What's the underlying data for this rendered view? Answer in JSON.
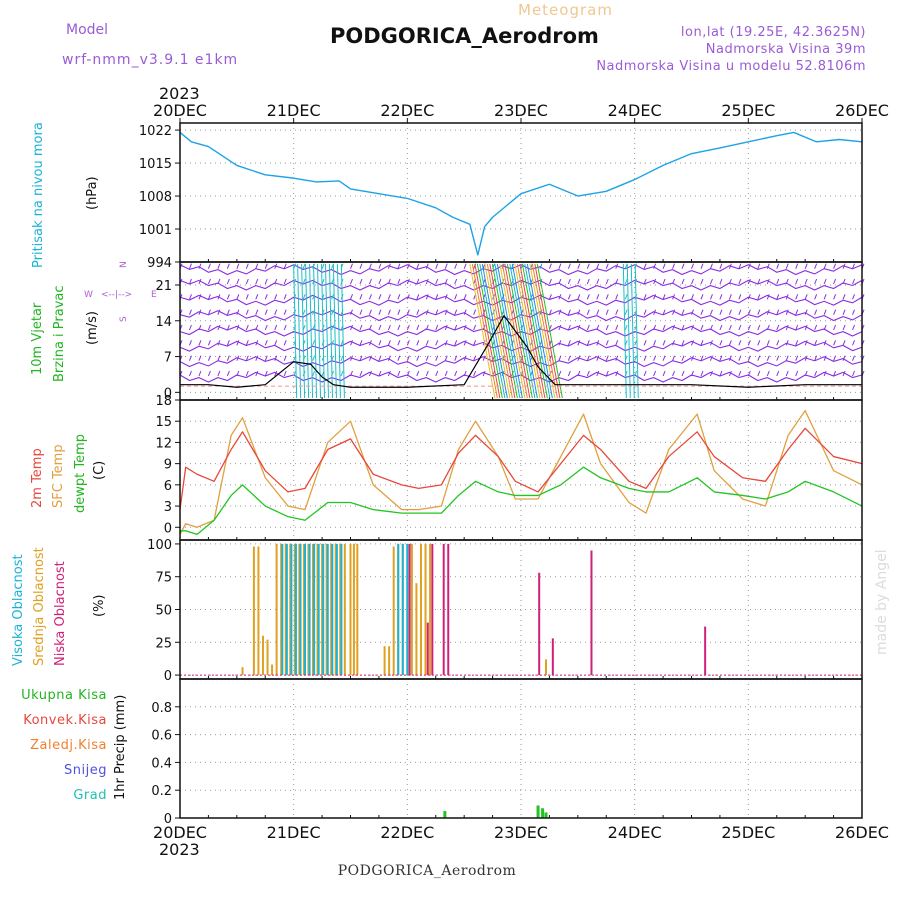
{
  "header": {
    "model_label": "Model",
    "model_value": "wrf-nmm_v3.9.1  e1km",
    "meteogram_label": "Meteogram",
    "title": "PODGORICA_Aerodrom",
    "lonlat": "lon,lat (19.25E, 42.3625N)",
    "elevation": "Nadmorska Visina 39m",
    "model_elevation": "Nadmorska Visina u modelu 52.8106m",
    "footer_title": "PODGORICA_Aerodrom",
    "watermark": "made by Angel"
  },
  "time_axis": {
    "year": "2023",
    "ticks": [
      "20DEC",
      "21DEC",
      "22DEC",
      "23DEC",
      "24DEC",
      "25DEC",
      "26DEC"
    ]
  },
  "colors": {
    "pressure": "#1ca3e6",
    "wind_purple": "#8a2be2",
    "wind_cyan": "#19c0c8",
    "wind_black": "#000000",
    "temp_2m": "#e8473b",
    "temp_sfc": "#e0a040",
    "dewpt": "#22c422",
    "cloud_high": "#1ab3d6",
    "cloud_mid": "#e0a020",
    "cloud_low": "#d0207a",
    "precip_total": "#22c422",
    "precip_conv": "#e8473b",
    "precip_frozen": "#f08030",
    "snow": "#5050e0",
    "hail": "#20c0b0",
    "watermark": "#dddddd"
  },
  "wind_compass": {
    "n": "N",
    "s": "S",
    "w": "W",
    "e": "E"
  },
  "chart_data": [
    {
      "type": "line",
      "id": "pressure",
      "ylabel_main": "Pritisak na nivou mora",
      "ylabel_unit": "(hPa)",
      "yticks": [
        994,
        1001,
        1008,
        1015,
        1022
      ],
      "ylim": [
        994,
        1023.5
      ],
      "series": [
        {
          "x": [
            0,
            0.1,
            0.25,
            0.5,
            0.75,
            1.0,
            1.2,
            1.4,
            1.5,
            1.75,
            2.0,
            2.25,
            2.4,
            2.55,
            2.62,
            2.68,
            2.75,
            3.0,
            3.25,
            3.5,
            3.75,
            4.0,
            4.25,
            4.5,
            4.75,
            5.0,
            5.25,
            5.4,
            5.6,
            5.8,
            6.0
          ],
          "values": [
            1021.5,
            1019.5,
            1018.5,
            1014.5,
            1012.5,
            1011.8,
            1011,
            1011.2,
            1009.5,
            1008.5,
            1007.5,
            1005.5,
            1003.5,
            1002,
            995.5,
            1001.5,
            1003.5,
            1008.5,
            1010.5,
            1008,
            1009,
            1011.5,
            1014.5,
            1017,
            1018.2,
            1019.5,
            1020.8,
            1021.5,
            1019.5,
            1020,
            1019.5
          ]
        }
      ]
    },
    {
      "type": "line",
      "id": "wind",
      "ylabel_main": "10m Vjetar",
      "ylabel_sub": "Brzina i Pravac",
      "ylabel_unit": "(m/s)",
      "yticks": [
        0,
        7,
        14,
        21
      ],
      "ylim": [
        -1.5,
        25.5
      ],
      "series": [
        {
          "name": "speed",
          "x": [
            0,
            0.25,
            0.5,
            0.75,
            1.0,
            1.15,
            1.25,
            1.35,
            1.5,
            2.0,
            2.5,
            2.7,
            2.85,
            2.95,
            3.05,
            3.15,
            3.3,
            3.6,
            4.0,
            4.5,
            5.0,
            5.5,
            6.0
          ],
          "values": [
            1.5,
            1.5,
            1.0,
            1.5,
            6,
            5.5,
            3,
            1.5,
            1.0,
            1.0,
            1.5,
            9,
            15,
            12,
            9,
            5,
            1.5,
            1.5,
            1.5,
            1.5,
            1.0,
            1.5,
            1.5
          ]
        }
      ]
    },
    {
      "type": "line",
      "id": "temperature",
      "ylabel_main": "2m Temp",
      "ylabel_sfc": "SFC Temp",
      "ylabel_dew": "dewpt Temp",
      "ylabel_unit": "(C)",
      "yticks": [
        0,
        3,
        6,
        9,
        12,
        15,
        18
      ],
      "ylim": [
        -1.8,
        18
      ],
      "series": [
        {
          "name": "2m Temp",
          "x": [
            0,
            0.05,
            0.15,
            0.3,
            0.45,
            0.55,
            0.75,
            0.95,
            1.1,
            1.3,
            1.5,
            1.7,
            1.95,
            2.1,
            2.3,
            2.45,
            2.6,
            2.8,
            2.95,
            3.15,
            3.35,
            3.55,
            3.7,
            3.95,
            4.1,
            4.3,
            4.55,
            4.7,
            4.95,
            5.15,
            5.35,
            5.5,
            5.75,
            6.0
          ],
          "values": [
            2.5,
            8.5,
            7.5,
            6.5,
            11,
            13.5,
            8,
            5,
            5.5,
            11,
            12.5,
            7.5,
            6,
            5.5,
            6,
            10.5,
            13,
            10,
            6.5,
            5,
            9,
            13,
            11,
            6.5,
            5.5,
            10,
            13.5,
            10,
            7,
            6.5,
            11,
            14,
            10,
            9
          ]
        },
        {
          "name": "SFC Temp",
          "x": [
            0,
            0.05,
            0.15,
            0.3,
            0.45,
            0.55,
            0.75,
            0.95,
            1.1,
            1.3,
            1.5,
            1.7,
            1.95,
            2.1,
            2.3,
            2.45,
            2.6,
            2.8,
            2.95,
            3.15,
            3.35,
            3.55,
            3.7,
            3.95,
            4.1,
            4.3,
            4.55,
            4.7,
            4.95,
            5.15,
            5.35,
            5.5,
            5.75,
            6.0
          ],
          "values": [
            -1,
            0.5,
            0,
            1,
            13,
            15.5,
            7,
            3,
            2.5,
            12,
            15,
            6,
            2.5,
            2.5,
            3,
            11,
            15,
            10,
            4,
            4,
            10,
            16,
            9,
            3.5,
            2,
            11,
            16,
            8,
            4,
            3,
            13,
            16.5,
            8,
            6
          ]
        },
        {
          "name": "dewpt Temp",
          "x": [
            0,
            0.05,
            0.15,
            0.3,
            0.45,
            0.55,
            0.75,
            0.95,
            1.1,
            1.3,
            1.5,
            1.7,
            1.95,
            2.1,
            2.3,
            2.45,
            2.6,
            2.8,
            2.95,
            3.15,
            3.35,
            3.55,
            3.7,
            3.95,
            4.1,
            4.3,
            4.55,
            4.7,
            4.95,
            5.15,
            5.35,
            5.5,
            5.75,
            6.0
          ],
          "values": [
            -0.5,
            -0.5,
            -1,
            1,
            4.5,
            6,
            3,
            1.5,
            1,
            3.5,
            3.5,
            2.5,
            2,
            2,
            2,
            4.5,
            6.5,
            5,
            4.5,
            4.5,
            6,
            8.5,
            7,
            5.5,
            5,
            5,
            7,
            5,
            4.5,
            4,
            5,
            6.5,
            5,
            3
          ]
        }
      ]
    },
    {
      "type": "bar",
      "id": "clouds",
      "ylabel_high": "Visoka Oblacnost",
      "ylabel_mid": "Srednja Oblacnost",
      "ylabel_low": "Niska Oblacnost",
      "ylabel_unit": "(%)",
      "yticks": [
        0,
        25,
        50,
        75,
        100
      ],
      "ylim": [
        -3,
        103
      ],
      "series": [
        {
          "name": "Visoka Oblacnost",
          "x": [
            0.9,
            0.94,
            0.98,
            1.02,
            1.06,
            1.1,
            1.14,
            1.18,
            1.22,
            1.26,
            1.3,
            1.34,
            1.38,
            1.42,
            1.92,
            1.96,
            2.0
          ],
          "values": [
            100,
            100,
            100,
            100,
            100,
            100,
            100,
            100,
            100,
            100,
            100,
            100,
            100,
            100,
            100,
            100,
            100
          ]
        },
        {
          "name": "Srednja Oblacnost",
          "x": [
            0.55,
            0.65,
            0.69,
            0.73,
            0.77,
            0.81,
            0.85,
            0.89,
            0.93,
            0.97,
            1.01,
            1.05,
            1.09,
            1.13,
            1.17,
            1.21,
            1.25,
            1.29,
            1.33,
            1.37,
            1.41,
            1.45,
            1.5,
            1.53,
            1.56,
            1.8,
            1.84,
            1.88,
            1.92,
            1.96,
            2.0,
            2.04,
            2.08,
            2.12,
            2.16,
            2.2,
            3.22
          ],
          "values": [
            6,
            98,
            98,
            30,
            27,
            8,
            100,
            100,
            100,
            100,
            100,
            100,
            100,
            100,
            100,
            100,
            100,
            100,
            100,
            100,
            100,
            100,
            100,
            100,
            100,
            22,
            22,
            98,
            100,
            100,
            100,
            100,
            70,
            100,
            100,
            100,
            12
          ]
        },
        {
          "name": "Niska Oblacnost",
          "x": [
            2.02,
            2.18,
            2.22,
            2.32,
            2.36,
            3.16,
            3.28,
            3.62,
            4.62
          ],
          "values": [
            100,
            40,
            100,
            100,
            100,
            78,
            28,
            95,
            37
          ]
        }
      ]
    },
    {
      "type": "bar",
      "id": "precip",
      "legend": [
        "Ukupna Kisa",
        "Konvek.Kisa",
        "Zaledj.Kisa",
        "Snijeg",
        "Grad"
      ],
      "ylabel_unit": "1hr Precip (mm)",
      "yticks": [
        0,
        0.2,
        0.4,
        0.6,
        0.8
      ],
      "ylim": [
        0,
        1.0
      ],
      "series": [
        {
          "name": "Ukupna Kisa",
          "x": [
            2.33,
            3.15,
            3.19,
            3.22
          ],
          "values": [
            0.05,
            0.09,
            0.07,
            0.04
          ]
        }
      ]
    }
  ]
}
